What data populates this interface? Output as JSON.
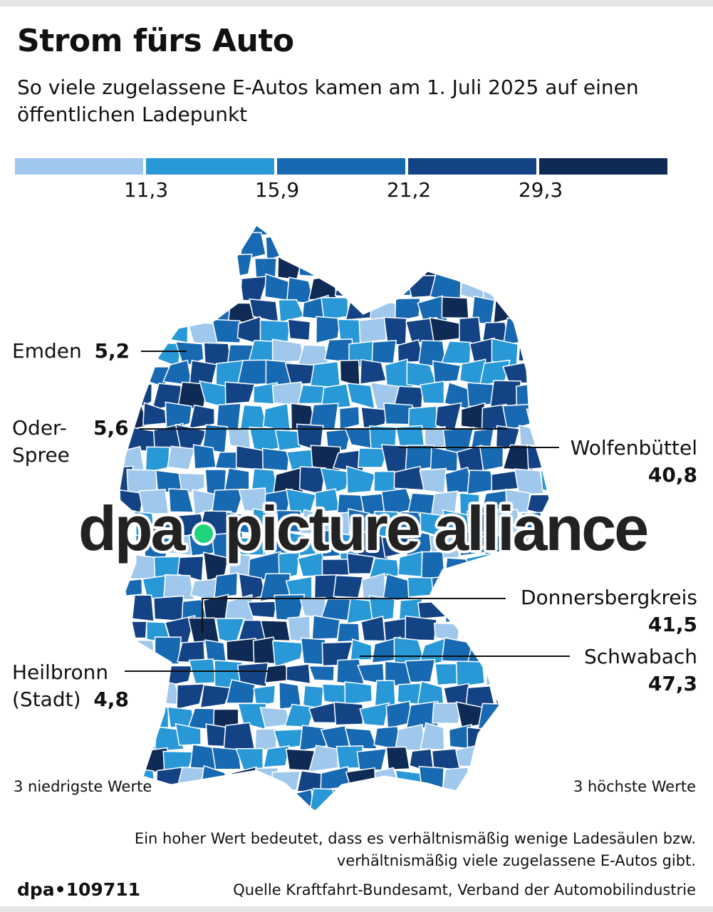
{
  "title": "Strom fürs Auto",
  "subtitle": "So viele zugelassene E-Autos kamen am 1. Juli 2025 auf einen öffentlichen Ladepunkt",
  "legend": {
    "colors": [
      "#9fc8ec",
      "#2898d6",
      "#1769b2",
      "#144385",
      "#0f2a55"
    ],
    "thresholds": [
      "11,3",
      "15,9",
      "21,2",
      "29,3"
    ]
  },
  "callouts": {
    "lowest_heading": "3 niedrigste Werte",
    "highest_heading": "3 höchste Werte",
    "lowest": [
      {
        "name": "Emden",
        "value": "5,2"
      },
      {
        "name": "Oder-Spree",
        "name_line1": "Oder-",
        "name_line2": "Spree",
        "value": "5,6"
      },
      {
        "name": "Heilbronn (Stadt)",
        "name_line1": "Heilbronn",
        "name_line2": "(Stadt)",
        "value": "4,8"
      }
    ],
    "highest": [
      {
        "name": "Wolfenbüttel",
        "value": "40,8"
      },
      {
        "name": "Donnersbergkreis",
        "value": "41,5"
      },
      {
        "name": "Schwabach",
        "value": "47,3"
      }
    ]
  },
  "explanation": [
    "Ein hoher Wert bedeutet, dass es verhältnismäßig wenige Ladesäulen bzw.",
    "verhältnismäßig viele zugelassene E-Autos gibt."
  ],
  "graphic_id": "dpa•109711",
  "source": "Quelle Kraftfahrt-Bundesamt, Verband der Automobilindustrie",
  "watermark": {
    "left": "dpa",
    "right": "picture alliance"
  }
}
